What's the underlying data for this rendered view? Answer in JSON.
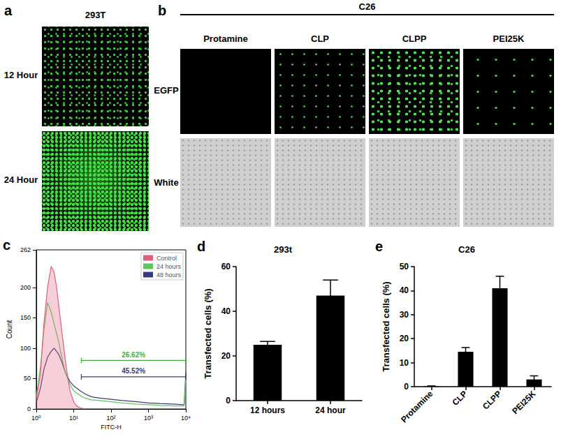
{
  "figure": {
    "a": {
      "panel": "a",
      "title": "293T",
      "rows": [
        "12 Hour",
        "24 Hour"
      ]
    },
    "b": {
      "panel": "b",
      "title": "C26",
      "columns": [
        "Protamine",
        "CLP",
        "CLPP",
        "PEI25K"
      ],
      "rows": [
        "EGFP",
        "White"
      ]
    }
  },
  "chart_data": [
    {
      "type": "line",
      "panel": "c",
      "xlabel": "FITC-H",
      "ylabel": "Count",
      "log": "x",
      "xlim": [
        1,
        10000
      ],
      "xticks": [
        {
          "value": 1,
          "label": "10⁰"
        },
        {
          "value": 10,
          "label": "10¹"
        },
        {
          "value": 100,
          "label": "10²"
        },
        {
          "value": 1000,
          "label": "10³"
        },
        {
          "value": 10000,
          "label": "10⁴"
        }
      ],
      "ylim": [
        0,
        262
      ],
      "yticks": [
        0,
        50,
        100,
        150,
        200,
        262
      ],
      "legend": "upper right",
      "series": [
        {
          "name": "Control",
          "color": "#e0607e",
          "x": [
            1,
            1.3,
            1.6,
            2,
            2.5,
            3,
            3.5,
            4,
            5,
            6,
            7,
            8,
            10,
            12,
            15,
            20
          ],
          "values": [
            15,
            60,
            140,
            200,
            235,
            225,
            200,
            170,
            120,
            80,
            50,
            30,
            12,
            5,
            2,
            0
          ]
        },
        {
          "name": "24 hours",
          "color": "#5cc85c",
          "x": [
            1,
            1.3,
            1.6,
            2,
            2.5,
            3,
            4,
            5,
            6,
            8,
            10,
            15,
            20,
            30,
            50,
            100,
            200,
            500,
            1000,
            2000,
            5000,
            9000,
            10000
          ],
          "values": [
            20,
            70,
            130,
            175,
            160,
            140,
            110,
            80,
            60,
            40,
            30,
            22,
            18,
            15,
            14,
            12,
            10,
            8,
            7,
            6,
            5,
            5,
            50
          ]
        },
        {
          "name": "48 hours",
          "color": "#3a3a7a",
          "x": [
            1,
            1.3,
            1.6,
            2,
            2.5,
            3,
            4,
            5,
            6,
            8,
            10,
            15,
            20,
            30,
            50,
            100,
            200,
            500,
            1000,
            2000,
            5000,
            9000,
            10000
          ],
          "values": [
            10,
            35,
            65,
            85,
            95,
            100,
            90,
            75,
            60,
            45,
            38,
            30,
            25,
            20,
            18,
            16,
            14,
            12,
            10,
            9,
            8,
            7,
            60
          ]
        }
      ],
      "annotations": [
        {
          "text": "26.62%",
          "color": "#3cb43c",
          "x": [
            16,
            10000
          ],
          "y": 80
        },
        {
          "text": "45.52%",
          "color": "#3a3a7a",
          "x": [
            16,
            10000
          ],
          "y": 53
        }
      ]
    },
    {
      "type": "bar",
      "panel": "d",
      "title": "293t",
      "ylabel": "Transfected cells (%)",
      "categories": [
        "12 hours",
        "24 hour"
      ],
      "values": [
        25,
        47
      ],
      "errors": [
        1.5,
        7
      ],
      "color": "#000000",
      "ylim": [
        0,
        60
      ],
      "yticks": [
        0,
        20,
        40,
        60
      ]
    },
    {
      "type": "bar",
      "panel": "e",
      "title": "C26",
      "ylabel": "Transfected cells (%)",
      "categories": [
        "Protamine",
        "CLP",
        "CLPP",
        "PEI25K"
      ],
      "values": [
        0.2,
        14.5,
        41,
        3
      ],
      "errors": [
        0.1,
        1.8,
        5,
        1.5
      ],
      "color": "#000000",
      "ylim": [
        0,
        50
      ],
      "yticks": [
        0,
        10,
        20,
        30,
        40,
        50
      ]
    }
  ]
}
